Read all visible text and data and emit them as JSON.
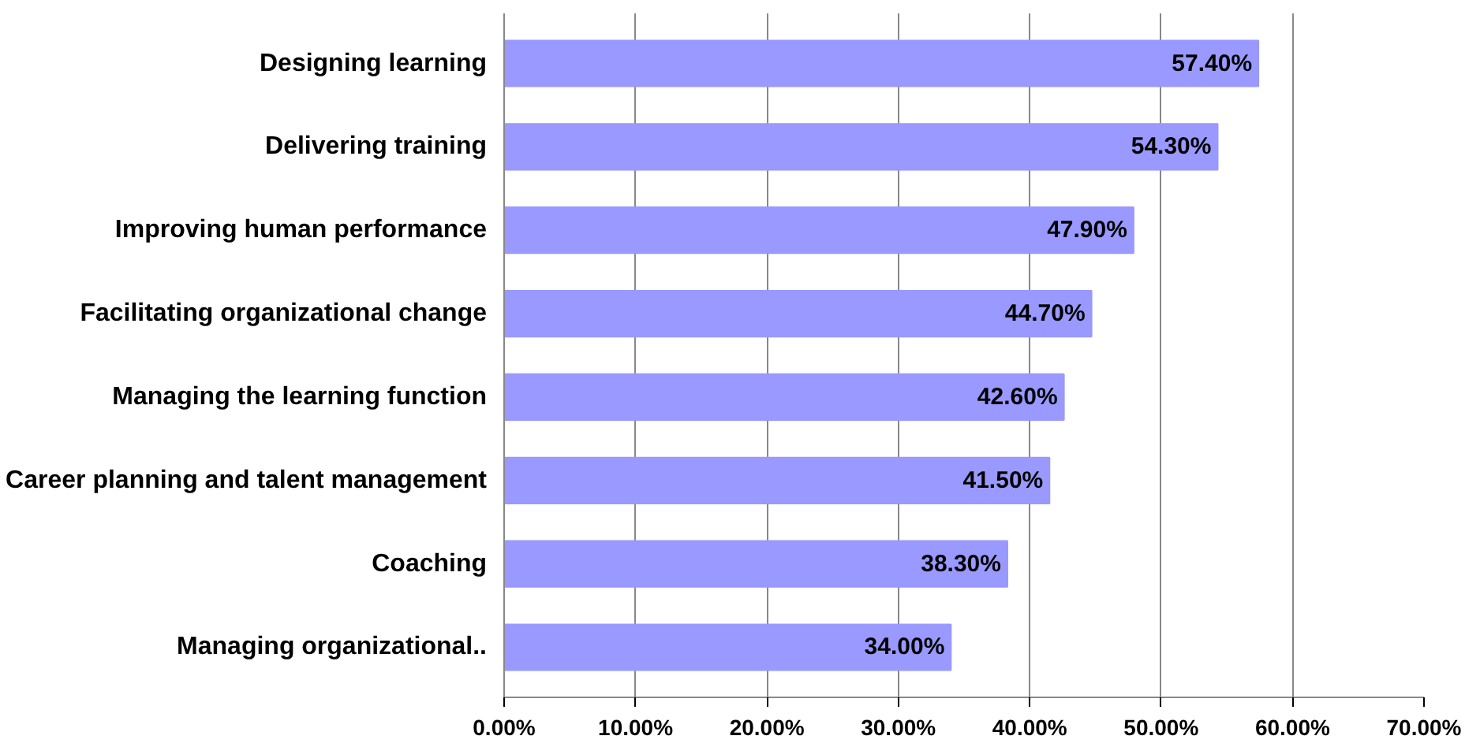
{
  "chart_data": {
    "type": "bar",
    "orientation": "horizontal",
    "categories": [
      "Designing learning",
      "Delivering training",
      "Improving human performance",
      "Facilitating organizational change",
      "Managing the learning function",
      "Career planning and talent management",
      "Coaching",
      "Managing organizational.."
    ],
    "values": [
      57.4,
      54.3,
      47.9,
      44.7,
      42.6,
      41.5,
      38.3,
      34.0
    ],
    "value_labels": [
      "57.40%",
      "54.30%",
      "47.90%",
      "44.70%",
      "42.60%",
      "41.50%",
      "38.30%",
      "34.00%"
    ],
    "color": "#9999ff",
    "xlim": [
      0,
      70
    ],
    "xticks": [
      {
        "value": 0,
        "label": "0.00%"
      },
      {
        "value": 10,
        "label": "10.00%"
      },
      {
        "value": 20,
        "label": "20.00%"
      },
      {
        "value": 30,
        "label": "30.00%"
      },
      {
        "value": 40,
        "label": "40.00%"
      },
      {
        "value": 50,
        "label": "50.00%"
      },
      {
        "value": 60,
        "label": "60.00%"
      },
      {
        "value": 70,
        "label": "70.00%"
      }
    ],
    "grid": "x"
  }
}
